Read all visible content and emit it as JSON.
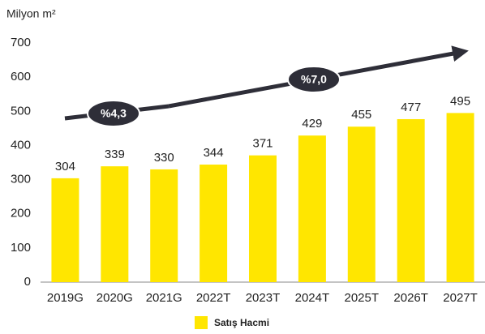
{
  "chart_data": {
    "type": "bar",
    "y_axis_label": "Milyon m²",
    "categories": [
      "2019G",
      "2020G",
      "2021G",
      "2022T",
      "2023T",
      "2024T",
      "2025T",
      "2026T",
      "2027T"
    ],
    "series": [
      {
        "name": "Satış Hacmi",
        "color": "#ffe600",
        "values": [
          304,
          339,
          330,
          344,
          371,
          429,
          455,
          477,
          495
        ]
      }
    ],
    "ylim": [
      0,
      700
    ],
    "yticks": [
      0,
      100,
      200,
      300,
      400,
      500,
      600,
      700
    ],
    "grid": false,
    "annotations": [
      "%4,3",
      "%7,0"
    ],
    "legend": "bottom"
  }
}
